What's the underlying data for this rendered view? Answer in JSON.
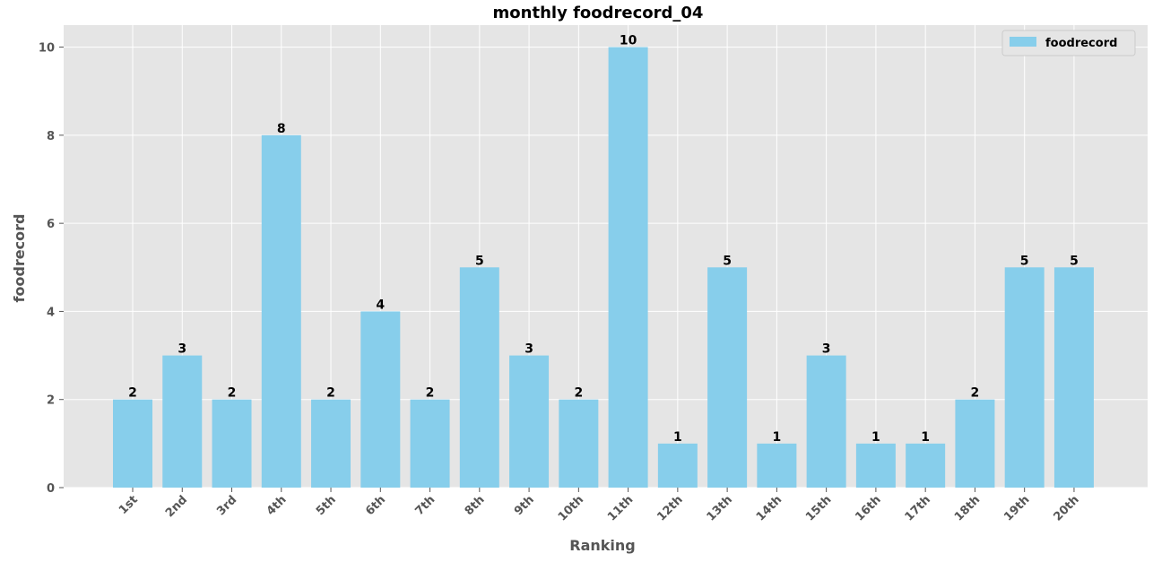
{
  "chart_data": {
    "type": "bar",
    "title": "monthly foodrecord_04",
    "xlabel": "Ranking",
    "ylabel": "foodrecord",
    "categories": [
      "1st",
      "2nd",
      "3rd",
      "4th",
      "5th",
      "6th",
      "7th",
      "8th",
      "9th",
      "10th",
      "11th",
      "12th",
      "13th",
      "14th",
      "15th",
      "16th",
      "17th",
      "18th",
      "19th",
      "20th"
    ],
    "series": [
      {
        "name": "foodrecord",
        "values": [
          2,
          3,
          2,
          8,
          2,
          4,
          2,
          5,
          3,
          2,
          10,
          1,
          5,
          1,
          3,
          1,
          1,
          2,
          5,
          5
        ]
      }
    ],
    "ylim": [
      0,
      10.5
    ],
    "yticks": [
      0,
      2,
      4,
      6,
      8,
      10
    ],
    "grid": true,
    "legend_position": "top-right",
    "colors": {
      "bar": "#87ceeb",
      "plot_background": "#e5e5e5",
      "grid": "#ffffff"
    }
  }
}
